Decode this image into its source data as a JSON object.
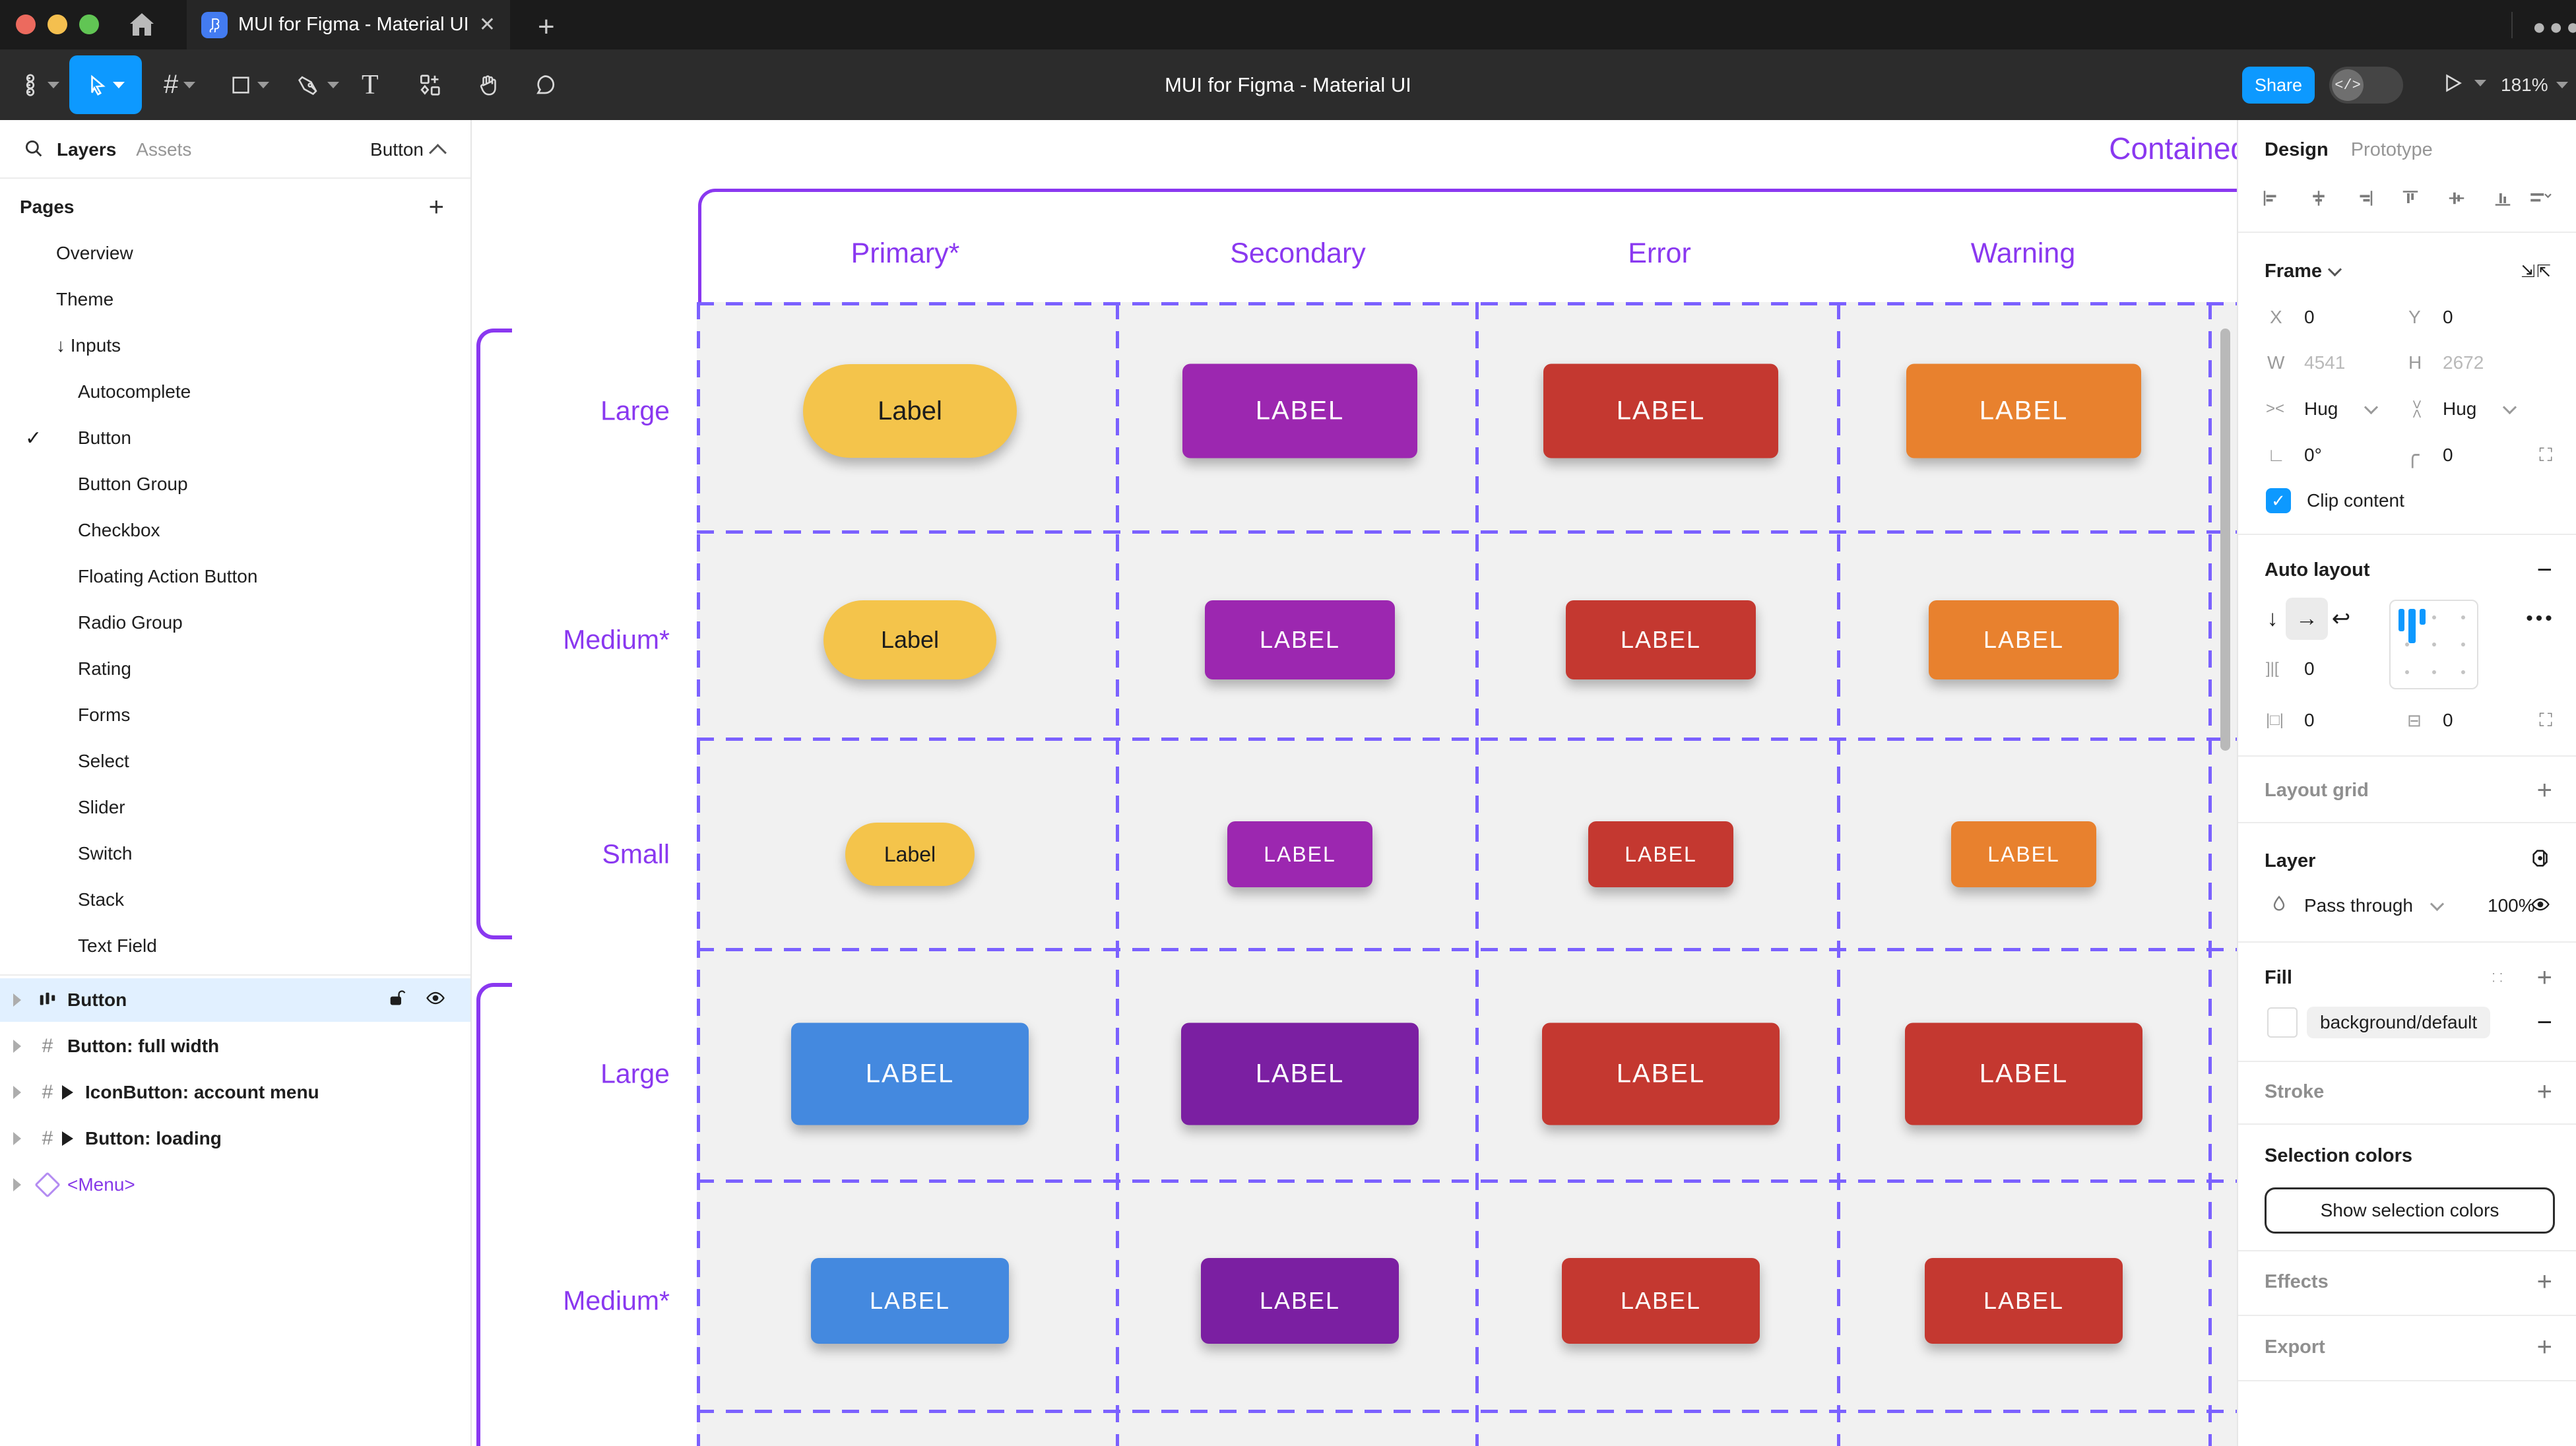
{
  "window": {
    "tab_title": "MUI for Figma - Material UI",
    "toolbar_title": "MUI for Figma - Material UI",
    "share_label": "Share",
    "zoom_level": "181%",
    "tab_more": "⋯"
  },
  "left_sidebar": {
    "tabs": {
      "layers": "Layers",
      "assets": "Assets"
    },
    "page_selector": "Button",
    "pages_header": "Pages",
    "pages": [
      {
        "label": "Overview",
        "level": 0
      },
      {
        "label": "Theme",
        "level": 0
      },
      {
        "label": "Inputs",
        "level": 0,
        "arrow": "↓"
      },
      {
        "label": "Autocomplete",
        "level": 1
      },
      {
        "label": "Button",
        "level": 1,
        "checked": true
      },
      {
        "label": "Button Group",
        "level": 1
      },
      {
        "label": "Checkbox",
        "level": 1
      },
      {
        "label": "Floating Action Button",
        "level": 1
      },
      {
        "label": "Radio Group",
        "level": 1
      },
      {
        "label": "Rating",
        "level": 1
      },
      {
        "label": "Forms",
        "level": 1
      },
      {
        "label": "Select",
        "level": 1
      },
      {
        "label": "Slider",
        "level": 1
      },
      {
        "label": "Switch",
        "level": 1
      },
      {
        "label": "Stack",
        "level": 1
      },
      {
        "label": "Text Field",
        "level": 1
      }
    ],
    "layers": [
      {
        "label": "Button",
        "icon": "autolayout",
        "selected": true,
        "lock": true,
        "eye": true
      },
      {
        "label": "Button: full width",
        "icon": "frame"
      },
      {
        "label": "IconButton: account menu",
        "icon": "frame",
        "play": true
      },
      {
        "label": "Button: loading",
        "icon": "frame",
        "play": true
      },
      {
        "label": "<Menu>",
        "icon": "diamond",
        "purple": true
      }
    ]
  },
  "canvas": {
    "frame_title": "Contained",
    "accent": "#8A38F0",
    "dash_color": "#7B61FF",
    "columns": [
      "Primary*",
      "Secondary",
      "Error",
      "Warning"
    ],
    "rows": [
      {
        "label": "Large",
        "size": "lg",
        "buttons": [
          {
            "text": "Label",
            "style": "pill",
            "bg": "#F4C44B",
            "fg": "#1C1C1C"
          },
          {
            "text": "LABEL",
            "bg": "#9C27B0",
            "fg": "#FFFFFF"
          },
          {
            "text": "LABEL",
            "bg": "#C43830",
            "fg": "#FFFFFF"
          },
          {
            "text": "LABEL",
            "bg": "#E8812E",
            "fg": "#FFFFFF"
          }
        ]
      },
      {
        "label": "Medium*",
        "size": "md",
        "buttons": [
          {
            "text": "Label",
            "style": "pill",
            "bg": "#F4C44B",
            "fg": "#1C1C1C"
          },
          {
            "text": "LABEL",
            "bg": "#9C27B0",
            "fg": "#FFFFFF"
          },
          {
            "text": "LABEL",
            "bg": "#C43830",
            "fg": "#FFFFFF"
          },
          {
            "text": "LABEL",
            "bg": "#E8812E",
            "fg": "#FFFFFF"
          }
        ]
      },
      {
        "label": "Small",
        "size": "sm",
        "buttons": [
          {
            "text": "Label",
            "style": "pill",
            "bg": "#F4C44B",
            "fg": "#1C1C1C"
          },
          {
            "text": "LABEL",
            "bg": "#9C27B0",
            "fg": "#FFFFFF"
          },
          {
            "text": "LABEL",
            "bg": "#C43830",
            "fg": "#FFFFFF"
          },
          {
            "text": "LABEL",
            "bg": "#E8812E",
            "fg": "#FFFFFF"
          }
        ]
      },
      {
        "label": "Large",
        "size": "lg2",
        "buttons": [
          {
            "text": "LABEL",
            "bg": "#4489DF",
            "fg": "#FFFFFF"
          },
          {
            "text": "LABEL",
            "bg": "#7B1FA2",
            "fg": "#FFFFFF"
          },
          {
            "text": "LABEL",
            "bg": "#C43830",
            "fg": "#FFFFFF"
          },
          {
            "text": "LABEL",
            "bg": "#C43830",
            "fg": "#FFFFFF"
          }
        ]
      },
      {
        "label": "Medium*",
        "size": "md2",
        "buttons": [
          {
            "text": "LABEL",
            "bg": "#4489DF",
            "fg": "#FFFFFF"
          },
          {
            "text": "LABEL",
            "bg": "#7B1FA2",
            "fg": "#FFFFFF"
          },
          {
            "text": "LABEL",
            "bg": "#C43830",
            "fg": "#FFFFFF"
          },
          {
            "text": "LABEL",
            "bg": "#C43830",
            "fg": "#FFFFFF"
          }
        ]
      }
    ]
  },
  "right_sidebar": {
    "tabs": {
      "design": "Design",
      "prototype": "Prototype"
    },
    "frame": {
      "title": "Frame",
      "x_label": "X",
      "x": "0",
      "y_label": "Y",
      "y": "0",
      "w_label": "W",
      "w": "4541",
      "h_label": "H",
      "h": "2672",
      "h_sizing": "Hug",
      "v_sizing": "Hug",
      "rotation": "0°",
      "radius": "0",
      "clip": "Clip content"
    },
    "auto_layout": {
      "title": "Auto layout",
      "gap": "0",
      "pad_h": "0",
      "pad_v": "0"
    },
    "layout_grid": "Layout grid",
    "layer": {
      "title": "Layer",
      "blend": "Pass through",
      "opacity": "100%"
    },
    "fill": {
      "title": "Fill",
      "token": "background/default"
    },
    "stroke": "Stroke",
    "selection": {
      "title": "Selection colors",
      "button": "Show selection colors"
    },
    "effects": "Effects",
    "export": "Export"
  },
  "colors": {
    "accent_blue": "#0D99FF",
    "selected_row": "#E1F0FF"
  }
}
